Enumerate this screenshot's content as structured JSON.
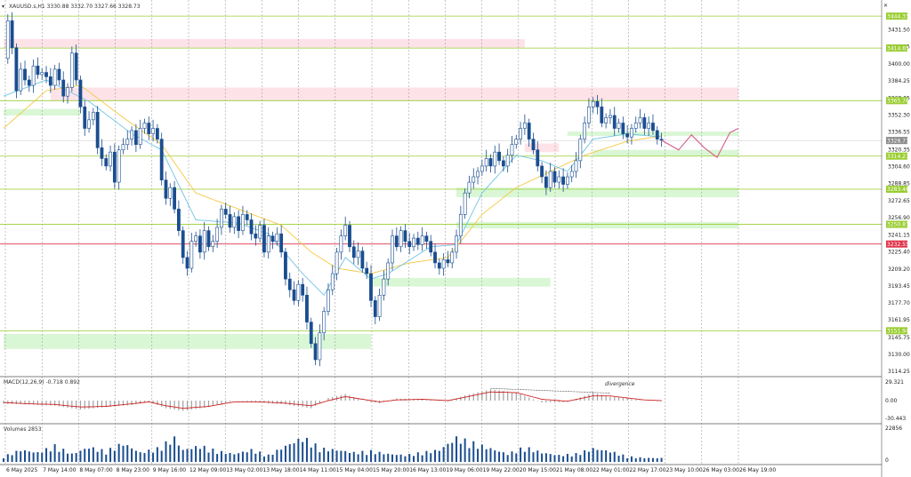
{
  "header": {
    "symbol_line": "XAUUSD.s,H1   3330.88 3332.70 3327.66 3328.73",
    "close_button": "✕"
  },
  "colors": {
    "up": "#1a4d8f",
    "down": "#1a4d8f",
    "ma_fast": "#6fc3e8",
    "ma_slow": "#f5c842",
    "level_line": "#9acd32",
    "level_box": "#9acd32",
    "red_line": "#e0334a",
    "red_box": "#e0334a",
    "resistance_zone": "#fde3e8",
    "support_zone": "#d9f7d5",
    "grid": "#8c8c8c",
    "macd_signal": "#cc2222",
    "macd_hist": "#a0a0a0",
    "volume": "#1a4d8f"
  },
  "chart_data": [
    {
      "type": "candlestick",
      "title": "XAUUSD.s,H1",
      "ylim": [
        3114.25,
        3447.75
      ],
      "price_scale": [
        "3431.50",
        "3415.85",
        "3400.00",
        "3384.25",
        "3368.05",
        "3352.30",
        "3336.55",
        "3320.35",
        "3304.60",
        "3288.85",
        "3272.65",
        "3256.90",
        "3241.15",
        "3225.40",
        "3209.20",
        "3193.45",
        "3177.70",
        "3161.95",
        "3145.75",
        "3130.00",
        "3114.25"
      ],
      "time_labels": [
        "6 May 2025",
        "7 May 14:00",
        "8 May 07:00",
        "8 May 23:00",
        "9 May 16:00",
        "12 May 09:00",
        "13 May 02:00",
        "13 May 18:00",
        "14 May 11:00",
        "15 May 04:00",
        "15 May 20:00",
        "16 May 13:00",
        "19 May 06:00",
        "19 May 22:00",
        "20 May 15:00",
        "21 May 08:00",
        "22 May 01:00",
        "22 May 17:00",
        "23 May 10:00",
        "26 May 03:00",
        "26 May 19:00"
      ],
      "price_path": [
        [
          0,
          3405
        ],
        [
          1,
          3440
        ],
        [
          2,
          3415
        ],
        [
          3,
          3375
        ],
        [
          4,
          3395
        ],
        [
          5,
          3385
        ],
        [
          6,
          3380
        ],
        [
          7,
          3398
        ],
        [
          8,
          3390
        ],
        [
          9,
          3392
        ],
        [
          10,
          3388
        ],
        [
          11,
          3380
        ],
        [
          12,
          3395
        ],
        [
          13,
          3385
        ],
        [
          14,
          3370
        ],
        [
          15,
          3378
        ],
        [
          16,
          3410
        ],
        [
          17,
          3385
        ],
        [
          18,
          3360
        ],
        [
          19,
          3340
        ],
        [
          20,
          3348
        ],
        [
          21,
          3355
        ],
        [
          22,
          3322
        ],
        [
          23,
          3312
        ],
        [
          24,
          3305
        ],
        [
          25,
          3318
        ],
        [
          26,
          3290
        ],
        [
          27,
          3320
        ],
        [
          28,
          3325
        ],
        [
          29,
          3330
        ],
        [
          30,
          3338
        ],
        [
          31,
          3325
        ],
        [
          32,
          3340
        ],
        [
          33,
          3345
        ],
        [
          34,
          3335
        ],
        [
          35,
          3340
        ],
        [
          36,
          3330
        ],
        [
          37,
          3292
        ],
        [
          38,
          3275
        ],
        [
          39,
          3285
        ],
        [
          40,
          3265
        ],
        [
          41,
          3245
        ],
        [
          42,
          3220
        ],
        [
          43,
          3210
        ],
        [
          44,
          3235
        ],
        [
          45,
          3240
        ],
        [
          46,
          3225
        ],
        [
          47,
          3245
        ],
        [
          48,
          3230
        ],
        [
          49,
          3235
        ],
        [
          50,
          3248
        ],
        [
          51,
          3265
        ],
        [
          52,
          3260
        ],
        [
          53,
          3248
        ],
        [
          54,
          3258
        ],
        [
          55,
          3245
        ],
        [
          56,
          3260
        ],
        [
          57,
          3255
        ],
        [
          58,
          3242
        ],
        [
          59,
          3238
        ],
        [
          60,
          3250
        ],
        [
          61,
          3225
        ],
        [
          62,
          3240
        ],
        [
          63,
          3235
        ],
        [
          64,
          3242
        ],
        [
          65,
          3225
        ],
        [
          66,
          3200
        ],
        [
          67,
          3190
        ],
        [
          68,
          3180
        ],
        [
          69,
          3195
        ],
        [
          70,
          3185
        ],
        [
          71,
          3160
        ],
        [
          72,
          3140
        ],
        [
          73,
          3125
        ],
        [
          74,
          3150
        ],
        [
          75,
          3170
        ],
        [
          76,
          3190
        ],
        [
          77,
          3205
        ],
        [
          78,
          3225
        ],
        [
          79,
          3240
        ],
        [
          80,
          3250
        ],
        [
          81,
          3230
        ],
        [
          82,
          3220
        ],
        [
          83,
          3226
        ],
        [
          84,
          3210
        ],
        [
          85,
          3205
        ],
        [
          86,
          3180
        ],
        [
          87,
          3165
        ],
        [
          88,
          3185
        ],
        [
          89,
          3200
        ],
        [
          90,
          3215
        ],
        [
          91,
          3240
        ],
        [
          92,
          3230
        ],
        [
          93,
          3245
        ],
        [
          94,
          3235
        ],
        [
          95,
          3230
        ],
        [
          96,
          3238
        ],
        [
          97,
          3232
        ],
        [
          98,
          3240
        ],
        [
          99,
          3235
        ],
        [
          100,
          3225
        ],
        [
          101,
          3215
        ],
        [
          102,
          3210
        ],
        [
          103,
          3218
        ],
        [
          104,
          3215
        ],
        [
          105,
          3225
        ],
        [
          106,
          3240
        ],
        [
          107,
          3260
        ],
        [
          108,
          3280
        ],
        [
          109,
          3290
        ],
        [
          110,
          3295
        ],
        [
          111,
          3300
        ],
        [
          112,
          3305
        ],
        [
          113,
          3312
        ],
        [
          114,
          3305
        ],
        [
          115,
          3318
        ],
        [
          116,
          3310
        ],
        [
          117,
          3305
        ],
        [
          118,
          3315
        ],
        [
          119,
          3325
        ],
        [
          120,
          3330
        ],
        [
          121,
          3340
        ],
        [
          122,
          3345
        ],
        [
          123,
          3330
        ],
        [
          124,
          3320
        ],
        [
          125,
          3305
        ],
        [
          126,
          3295
        ],
        [
          127,
          3285
        ],
        [
          128,
          3300
        ],
        [
          129,
          3290
        ],
        [
          130,
          3295
        ],
        [
          131,
          3288
        ],
        [
          132,
          3295
        ],
        [
          133,
          3300
        ],
        [
          134,
          3310
        ],
        [
          135,
          3330
        ],
        [
          136,
          3345
        ],
        [
          137,
          3360
        ],
        [
          138,
          3365
        ],
        [
          139,
          3360
        ],
        [
          140,
          3345
        ],
        [
          141,
          3350
        ],
        [
          142,
          3352
        ],
        [
          143,
          3340
        ],
        [
          144,
          3345
        ],
        [
          145,
          3335
        ],
        [
          146,
          3332
        ],
        [
          147,
          3340
        ],
        [
          148,
          3345
        ],
        [
          149,
          3350
        ],
        [
          150,
          3340
        ],
        [
          151,
          3345
        ],
        [
          152,
          3338
        ],
        [
          153,
          3330
        ],
        [
          154,
          3329
        ]
      ],
      "ma_fast_path": [
        [
          0,
          3370
        ],
        [
          10,
          3385
        ],
        [
          20,
          3365
        ],
        [
          30,
          3335
        ],
        [
          37,
          3320
        ],
        [
          45,
          3255
        ],
        [
          55,
          3252
        ],
        [
          62,
          3242
        ],
        [
          70,
          3205
        ],
        [
          75,
          3185
        ],
        [
          80,
          3220
        ],
        [
          86,
          3200
        ],
        [
          90,
          3205
        ],
        [
          100,
          3230
        ],
        [
          106,
          3232
        ],
        [
          112,
          3280
        ],
        [
          120,
          3315
        ],
        [
          126,
          3310
        ],
        [
          132,
          3300
        ],
        [
          138,
          3330
        ],
        [
          146,
          3335
        ],
        [
          154,
          3332
        ]
      ],
      "ma_slow_path": [
        [
          0,
          3340
        ],
        [
          10,
          3375
        ],
        [
          18,
          3380
        ],
        [
          28,
          3350
        ],
        [
          37,
          3325
        ],
        [
          45,
          3280
        ],
        [
          55,
          3265
        ],
        [
          65,
          3250
        ],
        [
          72,
          3225
        ],
        [
          78,
          3210
        ],
        [
          86,
          3205
        ],
        [
          95,
          3215
        ],
        [
          104,
          3220
        ],
        [
          112,
          3260
        ],
        [
          120,
          3285
        ],
        [
          128,
          3300
        ],
        [
          136,
          3315
        ],
        [
          146,
          3328
        ],
        [
          154,
          3333
        ]
      ],
      "forecast_path": [
        [
          154,
          3329
        ],
        [
          158,
          3320
        ],
        [
          161,
          3334
        ],
        [
          164,
          3322
        ],
        [
          167,
          3313
        ],
        [
          170,
          3336
        ],
        [
          172,
          3340
        ]
      ],
      "levels": [
        {
          "price": "3444.33",
          "color": "level_line"
        },
        {
          "price": "3414.65",
          "color": "level_line"
        },
        {
          "price": "3365.78",
          "color": "level_line"
        },
        {
          "price": "3328.73",
          "color": "current"
        },
        {
          "price": "3314.23",
          "color": "level_line"
        },
        {
          "price": "3283.46",
          "color": "level_line"
        },
        {
          "price": "3250.83",
          "color": "level_line"
        },
        {
          "price": "3232.55",
          "color": "red_line"
        },
        {
          "price": "3151.94",
          "color": "level_line"
        }
      ],
      "zones": [
        {
          "kind": "resistance",
          "from_bar": 0,
          "to_bar": 122,
          "low": 3415,
          "high": 3423
        },
        {
          "kind": "resistance",
          "from_bar": 11,
          "to_bar": 160,
          "low": 3366,
          "high": 3378
        },
        {
          "kind": "resistance",
          "from_bar": 122,
          "to_bar": 130,
          "low": 3318,
          "high": 3326
        },
        {
          "kind": "support",
          "from_bar": 0,
          "to_bar": 18,
          "low": 3352,
          "high": 3358
        },
        {
          "kind": "support",
          "from_bar": 132,
          "to_bar": 160,
          "low": 3333,
          "high": 3337
        },
        {
          "kind": "support",
          "from_bar": 138,
          "to_bar": 160,
          "low": 3314,
          "high": 3320
        },
        {
          "kind": "support",
          "from_bar": 106,
          "to_bar": 160,
          "low": 3276,
          "high": 3285
        },
        {
          "kind": "support",
          "from_bar": 106,
          "to_bar": 160,
          "low": 3247,
          "high": 3253
        },
        {
          "kind": "support",
          "from_bar": 86,
          "to_bar": 128,
          "low": 3193,
          "high": 3201
        },
        {
          "kind": "support",
          "from_bar": 0,
          "to_bar": 86,
          "low": 3135,
          "high": 3149
        }
      ]
    },
    {
      "type": "histogram",
      "title": "MACD(12,26,9) -0.718 0.892",
      "scale": [
        "29.321",
        "0.00",
        "-30.443"
      ],
      "ylim": [
        -30.443,
        29.321
      ],
      "annotation": "divergence",
      "histogram_path": [
        [
          0,
          -5
        ],
        [
          6,
          -6
        ],
        [
          12,
          -8
        ],
        [
          18,
          -14
        ],
        [
          24,
          -10
        ],
        [
          30,
          -7
        ],
        [
          34,
          -2
        ],
        [
          38,
          -12
        ],
        [
          42,
          -16
        ],
        [
          48,
          -10
        ],
        [
          54,
          0
        ],
        [
          60,
          -3
        ],
        [
          66,
          -6
        ],
        [
          72,
          -12
        ],
        [
          76,
          4
        ],
        [
          80,
          10
        ],
        [
          84,
          0
        ],
        [
          88,
          -4
        ],
        [
          92,
          3
        ],
        [
          98,
          2
        ],
        [
          104,
          -1
        ],
        [
          108,
          8
        ],
        [
          114,
          17
        ],
        [
          120,
          12
        ],
        [
          126,
          -3
        ],
        [
          132,
          -2
        ],
        [
          138,
          12
        ],
        [
          142,
          6
        ],
        [
          150,
          0
        ],
        [
          154,
          -1
        ]
      ],
      "signal_path": [
        [
          0,
          -3
        ],
        [
          6,
          -5
        ],
        [
          12,
          -6
        ],
        [
          18,
          -10
        ],
        [
          24,
          -9
        ],
        [
          30,
          -5
        ],
        [
          34,
          -2
        ],
        [
          38,
          -8
        ],
        [
          42,
          -12
        ],
        [
          48,
          -9
        ],
        [
          54,
          -2
        ],
        [
          60,
          -2
        ],
        [
          66,
          -4
        ],
        [
          72,
          -8
        ],
        [
          76,
          0
        ],
        [
          80,
          6
        ],
        [
          84,
          2
        ],
        [
          88,
          -2
        ],
        [
          92,
          1
        ],
        [
          98,
          2
        ],
        [
          104,
          0
        ],
        [
          108,
          5
        ],
        [
          114,
          13
        ],
        [
          120,
          12
        ],
        [
          126,
          2
        ],
        [
          132,
          -1
        ],
        [
          138,
          7
        ],
        [
          142,
          7
        ],
        [
          150,
          1
        ],
        [
          154,
          0
        ]
      ]
    },
    {
      "type": "bar",
      "title": "Volumes 2853",
      "scale": [
        "22856",
        "0"
      ],
      "ylim": [
        0,
        22856
      ],
      "volume_path": [
        [
          0,
          4000
        ],
        [
          4,
          9000
        ],
        [
          8,
          7000
        ],
        [
          12,
          12000
        ],
        [
          16,
          6000
        ],
        [
          20,
          11000
        ],
        [
          24,
          8000
        ],
        [
          28,
          14000
        ],
        [
          32,
          7000
        ],
        [
          36,
          10000
        ],
        [
          40,
          18000
        ],
        [
          42,
          9000
        ],
        [
          46,
          12000
        ],
        [
          50,
          8000
        ],
        [
          54,
          6000
        ],
        [
          58,
          9000
        ],
        [
          62,
          5000
        ],
        [
          66,
          12000
        ],
        [
          70,
          18000
        ],
        [
          72,
          15000
        ],
        [
          74,
          10000
        ],
        [
          78,
          9000
        ],
        [
          82,
          7000
        ],
        [
          86,
          8000
        ],
        [
          90,
          6000
        ],
        [
          94,
          5000
        ],
        [
          98,
          7000
        ],
        [
          102,
          9000
        ],
        [
          106,
          18000
        ],
        [
          110,
          14000
        ],
        [
          114,
          10000
        ],
        [
          118,
          6000
        ],
        [
          122,
          11000
        ],
        [
          126,
          7000
        ],
        [
          130,
          5000
        ],
        [
          134,
          6000
        ],
        [
          138,
          10000
        ],
        [
          142,
          8000
        ],
        [
          146,
          4000
        ],
        [
          150,
          3000
        ],
        [
          154,
          2853
        ]
      ]
    }
  ]
}
